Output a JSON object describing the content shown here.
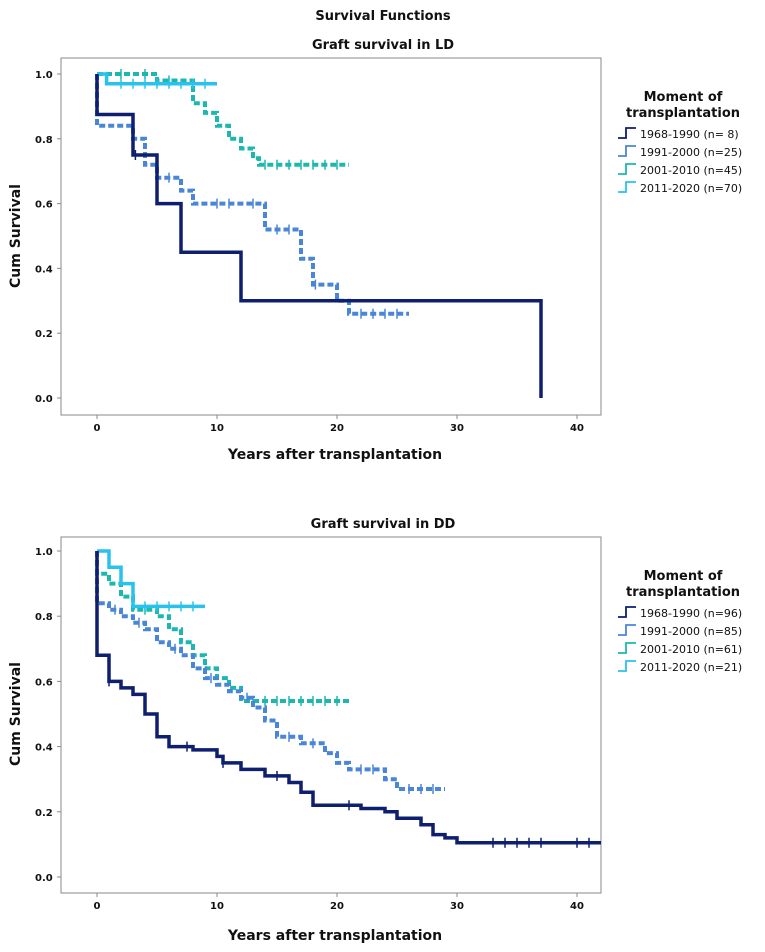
{
  "figure_title": "Survival Functions",
  "chart_data": [
    {
      "type": "line",
      "subtype": "kaplan-meier",
      "title": "Graft survival in LD",
      "xlabel": "Years after transplantation",
      "ylabel": "Cum Survival",
      "xlim": [
        -3,
        42
      ],
      "ylim": [
        0,
        1.05
      ],
      "xticks": [
        0,
        10,
        20,
        30,
        40
      ],
      "yticks": [
        0.0,
        0.2,
        0.4,
        0.6,
        0.8,
        1.0
      ],
      "xtick_labels": [
        "0",
        "10",
        "20",
        "30",
        "40"
      ],
      "ytick_labels": [
        "0.0",
        "0.2",
        "0.4",
        "0.6",
        "0.8",
        "1.0"
      ],
      "legend_title": "Moment of transplantation",
      "legend_title_lines": [
        "Moment of",
        "transplantation"
      ],
      "legend_position": "right",
      "series": [
        {
          "name": "1968-1990 (n=  8)",
          "color": "#0d1f6e",
          "dashed": false,
          "steps": [
            [
              0,
              1.0
            ],
            [
              0,
              0.875
            ],
            [
              3,
              0.75
            ],
            [
              5,
              0.6
            ],
            [
              7,
              0.45
            ],
            [
              12,
              0.3
            ],
            [
              37,
              0.0
            ]
          ],
          "end": 37,
          "censored": [
            3.2
          ]
        },
        {
          "name": "1991-2000 (n=25)",
          "color": "#4a86d8",
          "dashed": true,
          "steps": [
            [
              0,
              1.0
            ],
            [
              0,
              0.84
            ],
            [
              3,
              0.8
            ],
            [
              4,
              0.72
            ],
            [
              5,
              0.68
            ],
            [
              7,
              0.64
            ],
            [
              8,
              0.6
            ],
            [
              14,
              0.52
            ],
            [
              17,
              0.43
            ],
            [
              18,
              0.35
            ],
            [
              20,
              0.3
            ],
            [
              21,
              0.26
            ]
          ],
          "end": 26,
          "censored": [
            6,
            10,
            11,
            13,
            15,
            16,
            18.2,
            22,
            23,
            24,
            25
          ]
        },
        {
          "name": "2001-2010 (n=45)",
          "color": "#1cb8b0",
          "dashed": true,
          "steps": [
            [
              0,
              1.0
            ],
            [
              5,
              0.98
            ],
            [
              8,
              0.91
            ],
            [
              9,
              0.88
            ],
            [
              10,
              0.84
            ],
            [
              11,
              0.8
            ],
            [
              12,
              0.77
            ],
            [
              13,
              0.74
            ],
            [
              13.5,
              0.72
            ]
          ],
          "end": 21,
          "censored": [
            2,
            4,
            6,
            14,
            15,
            16,
            17,
            18,
            19,
            20
          ]
        },
        {
          "name": "2011-2020 (n=70)",
          "color": "#29c2ec",
          "dashed": false,
          "steps": [
            [
              0,
              1.0
            ],
            [
              0.8,
              0.97
            ]
          ],
          "end": 10,
          "censored": [
            2,
            3,
            4,
            5,
            6,
            7,
            8,
            9
          ]
        }
      ]
    },
    {
      "type": "line",
      "subtype": "kaplan-meier",
      "title": "Graft survival in DD",
      "xlabel": "Years after transplantation",
      "ylabel": "Cum Survival",
      "xlim": [
        -3,
        42
      ],
      "ylim": [
        0,
        1.05
      ],
      "xticks": [
        0,
        10,
        20,
        30,
        40
      ],
      "yticks": [
        0.0,
        0.2,
        0.4,
        0.6,
        0.8,
        1.0
      ],
      "xtick_labels": [
        "0",
        "10",
        "20",
        "30",
        "40"
      ],
      "ytick_labels": [
        "0.0",
        "0.2",
        "0.4",
        "0.6",
        "0.8",
        "1.0"
      ],
      "legend_title": "Moment of transplantation",
      "legend_title_lines": [
        "Moment of",
        "transplantation"
      ],
      "legend_position": "right",
      "series": [
        {
          "name": "1968-1990 (n=96)",
          "color": "#0d1f6e",
          "dashed": false,
          "steps": [
            [
              0,
              1.0
            ],
            [
              0,
              0.68
            ],
            [
              1,
              0.6
            ],
            [
              2,
              0.58
            ],
            [
              3,
              0.56
            ],
            [
              4,
              0.5
            ],
            [
              5,
              0.43
            ],
            [
              6,
              0.4
            ],
            [
              8,
              0.39
            ],
            [
              10,
              0.37
            ],
            [
              10.5,
              0.35
            ],
            [
              12,
              0.33
            ],
            [
              14,
              0.31
            ],
            [
              16,
              0.29
            ],
            [
              17,
              0.26
            ],
            [
              18,
              0.22
            ],
            [
              22,
              0.21
            ],
            [
              24,
              0.2
            ],
            [
              25,
              0.18
            ],
            [
              27,
              0.16
            ],
            [
              28,
              0.13
            ],
            [
              29,
              0.12
            ],
            [
              30,
              0.105
            ]
          ],
          "end": 42,
          "censored": [
            1,
            7.5,
            10.5,
            15,
            21,
            33,
            34,
            35,
            36,
            37,
            40,
            41
          ]
        },
        {
          "name": "1991-2000 (n=85)",
          "color": "#4a86d8",
          "dashed": true,
          "steps": [
            [
              0,
              1.0
            ],
            [
              0,
              0.84
            ],
            [
              1,
              0.82
            ],
            [
              2,
              0.8
            ],
            [
              3,
              0.78
            ],
            [
              4,
              0.76
            ],
            [
              5,
              0.72
            ],
            [
              6,
              0.7
            ],
            [
              7,
              0.68
            ],
            [
              8,
              0.64
            ],
            [
              9,
              0.61
            ],
            [
              10,
              0.59
            ],
            [
              11,
              0.57
            ],
            [
              12,
              0.55
            ],
            [
              13,
              0.52
            ],
            [
              14,
              0.48
            ],
            [
              15,
              0.43
            ],
            [
              17,
              0.41
            ],
            [
              19,
              0.38
            ],
            [
              20,
              0.35
            ],
            [
              21,
              0.33
            ],
            [
              24,
              0.3
            ],
            [
              25,
              0.27
            ]
          ],
          "end": 29,
          "censored": [
            1.5,
            3.5,
            6.5,
            9.5,
            12.5,
            16,
            18,
            22,
            23,
            26,
            27,
            28
          ]
        },
        {
          "name": "2001-2010 (n=61)",
          "color": "#1cb8b0",
          "dashed": true,
          "steps": [
            [
              0,
              1.0
            ],
            [
              0,
              0.93
            ],
            [
              1,
              0.9
            ],
            [
              2,
              0.86
            ],
            [
              3,
              0.82
            ],
            [
              5,
              0.8
            ],
            [
              6,
              0.76
            ],
            [
              7,
              0.72
            ],
            [
              8,
              0.68
            ],
            [
              9,
              0.64
            ],
            [
              10,
              0.61
            ],
            [
              11,
              0.58
            ],
            [
              12,
              0.54
            ]
          ],
          "end": 21,
          "censored": [
            4,
            13,
            14,
            15,
            16,
            17,
            18,
            19,
            20
          ]
        },
        {
          "name": "2011-2020 (n=21)",
          "color": "#29c2ec",
          "dashed": false,
          "steps": [
            [
              0,
              1.0
            ],
            [
              1,
              0.95
            ],
            [
              2,
              0.9
            ],
            [
              3,
              0.83
            ]
          ],
          "end": 9,
          "censored": [
            4,
            5,
            6,
            7,
            8
          ]
        }
      ]
    }
  ]
}
